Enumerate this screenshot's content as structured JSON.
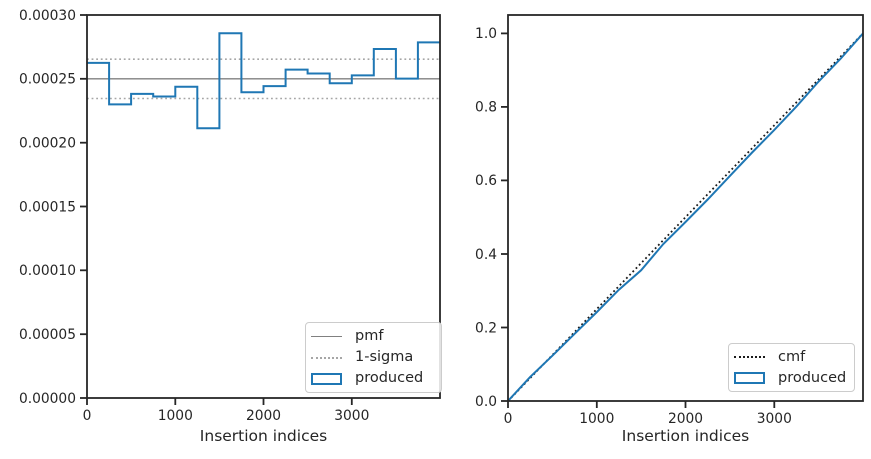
{
  "figure": {
    "background": "#ffffff"
  },
  "colors": {
    "produced": "#1f77b4",
    "pmf_line": "#808080",
    "sigma_line": "#a6a6a6",
    "cmf_line": "#1a1a1a",
    "axis": "#262626",
    "text": "#262626",
    "legend_border": "#cccccc"
  },
  "chart_data": [
    {
      "panel": "left",
      "type": "line",
      "style": "step-histogram",
      "title": "",
      "xlabel": "Insertion indices",
      "ylabel": "",
      "xlim": [
        0,
        4000
      ],
      "ylim": [
        0,
        0.0003
      ],
      "grid": false,
      "xtick_values": [
        0,
        1000,
        2000,
        3000
      ],
      "xtick_labels": [
        "0",
        "1000",
        "2000",
        "3000"
      ],
      "ytick_values": [
        0,
        5e-05,
        0.0001,
        0.00015,
        0.0002,
        0.00025,
        0.0003
      ],
      "ytick_labels": [
        "0.00000",
        "0.00005",
        "0.00010",
        "0.00015",
        "0.00020",
        "0.00025",
        "0.00030"
      ],
      "bin_edges": [
        0,
        250,
        500,
        750,
        1000,
        1250,
        1500,
        1750,
        2000,
        2250,
        2500,
        2750,
        3000,
        3250,
        3500,
        3750,
        4000
      ],
      "series": [
        {
          "name": "pmf",
          "style": "solid",
          "color": "#808080",
          "width": 1.4,
          "y_const": 0.00025
        },
        {
          "name": "1-sigma",
          "style": "dotted",
          "color": "#a6a6a6",
          "width": 1.6,
          "y_consts": [
            0.0002654,
            0.0002346
          ]
        },
        {
          "name": "produced",
          "style": "step",
          "color": "#1f77b4",
          "width": 2,
          "step_values": [
            0.0002625,
            0.00023,
            0.0002382,
            0.0002362,
            0.0002438,
            0.0002113,
            0.0002857,
            0.0002395,
            0.0002443,
            0.0002572,
            0.0002542,
            0.0002465,
            0.0002527,
            0.0002734,
            0.0002502,
            0.0002785
          ]
        }
      ],
      "legend": {
        "position": "lower right",
        "entries": [
          "pmf",
          "1-sigma",
          "produced"
        ]
      }
    },
    {
      "panel": "right",
      "type": "line",
      "title": "",
      "xlabel": "Insertion indices",
      "ylabel": "",
      "xlim": [
        0,
        4000
      ],
      "ylim": [
        0,
        1.05
      ],
      "grid": false,
      "xtick_values": [
        0,
        1000,
        2000,
        3000
      ],
      "xtick_labels": [
        "0",
        "1000",
        "2000",
        "3000"
      ],
      "ytick_values": [
        0,
        0.2,
        0.4,
        0.6,
        0.8,
        1.0
      ],
      "ytick_labels": [
        "0.0",
        "0.2",
        "0.4",
        "0.6",
        "0.8",
        "1.0"
      ],
      "series": [
        {
          "name": "cmf",
          "style": "dotted",
          "color": "#1a1a1a",
          "width": 1.8,
          "x": [
            0,
            4000
          ],
          "y": [
            0,
            1.0
          ]
        },
        {
          "name": "produced",
          "style": "solid",
          "color": "#1f77b4",
          "width": 2,
          "x": [
            0,
            250,
            500,
            750,
            1000,
            1250,
            1500,
            1750,
            2000,
            2250,
            2500,
            2750,
            3000,
            3250,
            3500,
            3750,
            4000
          ],
          "y": [
            0,
            0.0656,
            0.1231,
            0.1827,
            0.2418,
            0.3028,
            0.3556,
            0.427,
            0.4869,
            0.548,
            0.6123,
            0.6759,
            0.7375,
            0.8007,
            0.8691,
            0.9317,
            1.0
          ]
        }
      ],
      "legend": {
        "position": "lower right",
        "entries": [
          "cmf",
          "produced"
        ]
      }
    }
  ]
}
